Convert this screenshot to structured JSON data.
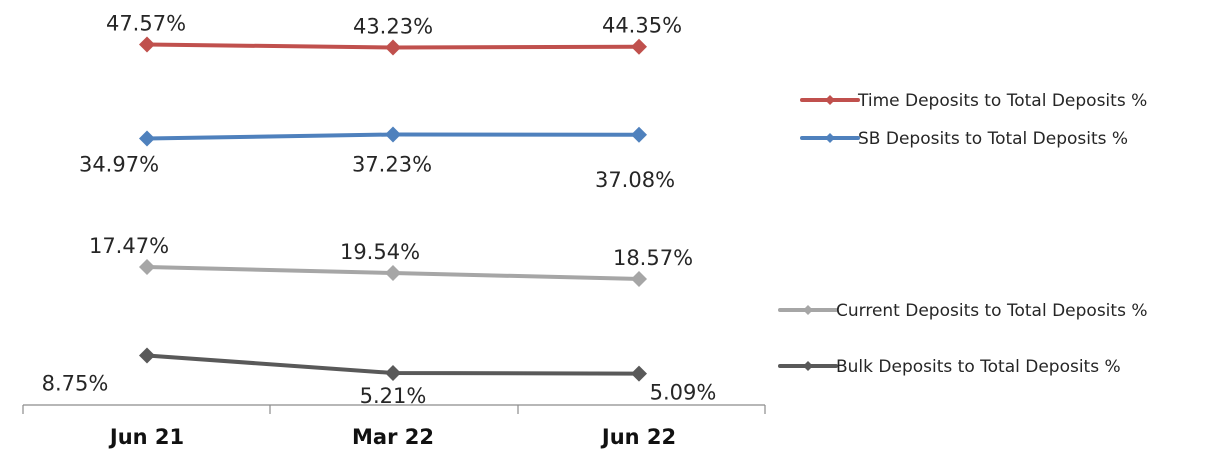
{
  "chart_data": {
    "type": "line",
    "categories": [
      "Jun 21",
      "Mar 22",
      "Jun 22"
    ],
    "series": [
      {
        "name": "Time Deposits to Total Deposits %",
        "values": [
          47.57,
          43.23,
          44.35
        ],
        "labels": [
          "47.57%",
          "43.23%",
          "44.35%"
        ],
        "color": "#C0504D"
      },
      {
        "name": "SB Deposits to Total Deposits %",
        "values": [
          34.97,
          37.23,
          37.08
        ],
        "labels": [
          "34.97%",
          "37.23%",
          "37.08%"
        ],
        "color": "#4F81BD"
      },
      {
        "name": "Current Deposits to Total Deposits %",
        "values": [
          17.47,
          19.54,
          18.57
        ],
        "labels": [
          "17.47%",
          "19.54%",
          "18.57%"
        ],
        "color": "#A6A6A6"
      },
      {
        "name": "Bulk Deposits to Total Deposits %",
        "values": [
          8.75,
          5.21,
          5.09
        ],
        "labels": [
          "8.75%",
          "5.21%",
          "5.09%"
        ],
        "color": "#595959"
      }
    ],
    "legend": "right",
    "grid": false
  }
}
